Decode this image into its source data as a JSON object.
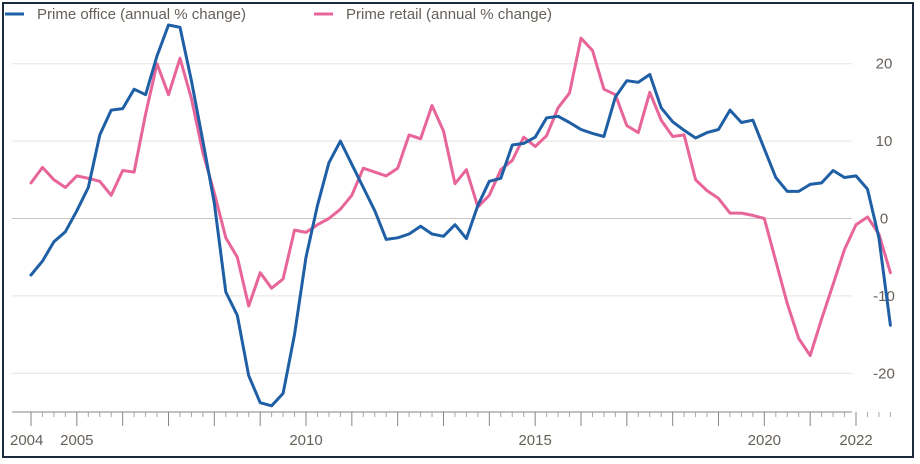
{
  "chart_data": {
    "type": "line",
    "title": "",
    "xlabel": "",
    "ylabel": "",
    "ylim": [
      -25,
      25
    ],
    "xlim": [
      2004,
      2022
    ],
    "y_ticks": [
      20,
      10,
      0,
      -10,
      -20
    ],
    "y_tick_labels": [
      "20",
      "10",
      "0",
      "-10",
      "-20"
    ],
    "x_ticks": [
      2004,
      2005,
      2010,
      2015,
      2020,
      2022
    ],
    "x_tick_labels": [
      "2004",
      "2005",
      "2010",
      "2015",
      "2020",
      "2022"
    ],
    "grid": "horizontal",
    "y_axis_side": "right",
    "legend_position": "top-left",
    "series": [
      {
        "name": "Prime office (annual % change)",
        "color": "#1f5fa5",
        "points": [
          [
            2004.0,
            -7.3
          ],
          [
            2004.25,
            -5.5
          ],
          [
            2004.5,
            -3.0
          ],
          [
            2004.75,
            -1.7
          ],
          [
            2005.0,
            1.0
          ],
          [
            2005.25,
            4.0
          ],
          [
            2005.5,
            10.8
          ],
          [
            2005.75,
            14.0
          ],
          [
            2006.0,
            14.2
          ],
          [
            2006.25,
            16.7
          ],
          [
            2006.5,
            16.0
          ],
          [
            2006.75,
            21.0
          ],
          [
            2007.0,
            25.0
          ],
          [
            2007.25,
            24.7
          ],
          [
            2007.5,
            17.8
          ],
          [
            2007.75,
            10.0
          ],
          [
            2008.0,
            2.0
          ],
          [
            2008.25,
            -9.5
          ],
          [
            2008.5,
            -12.5
          ],
          [
            2008.75,
            -20.3
          ],
          [
            2009.0,
            -23.8
          ],
          [
            2009.25,
            -24.2
          ],
          [
            2009.5,
            -22.6
          ],
          [
            2009.75,
            -15.0
          ],
          [
            2010.0,
            -5.0
          ],
          [
            2010.25,
            1.7
          ],
          [
            2010.5,
            7.2
          ],
          [
            2010.75,
            10.0
          ],
          [
            2011.0,
            7.0
          ],
          [
            2011.25,
            4.0
          ],
          [
            2011.5,
            1.0
          ],
          [
            2011.75,
            -2.7
          ],
          [
            2012.0,
            -2.5
          ],
          [
            2012.25,
            -2.0
          ],
          [
            2012.5,
            -1.0
          ],
          [
            2012.75,
            -2.0
          ],
          [
            2013.0,
            -2.3
          ],
          [
            2013.25,
            -0.8
          ],
          [
            2013.5,
            -2.6
          ],
          [
            2013.75,
            1.7
          ],
          [
            2014.0,
            4.8
          ],
          [
            2014.25,
            5.2
          ],
          [
            2014.5,
            9.5
          ],
          [
            2014.75,
            9.7
          ],
          [
            2015.0,
            10.5
          ],
          [
            2015.25,
            13.0
          ],
          [
            2015.5,
            13.2
          ],
          [
            2015.75,
            12.4
          ],
          [
            2016.0,
            11.5
          ],
          [
            2016.25,
            11.0
          ],
          [
            2016.5,
            10.6
          ],
          [
            2016.75,
            15.7
          ],
          [
            2017.0,
            17.8
          ],
          [
            2017.25,
            17.6
          ],
          [
            2017.5,
            18.6
          ],
          [
            2017.75,
            14.3
          ],
          [
            2018.0,
            12.5
          ],
          [
            2018.25,
            11.4
          ],
          [
            2018.5,
            10.4
          ],
          [
            2018.75,
            11.1
          ],
          [
            2019.0,
            11.5
          ],
          [
            2019.25,
            14.0
          ],
          [
            2019.5,
            12.4
          ],
          [
            2019.75,
            12.7
          ],
          [
            2020.0,
            9.0
          ],
          [
            2020.25,
            5.3
          ],
          [
            2020.5,
            3.5
          ],
          [
            2020.75,
            3.5
          ],
          [
            2021.0,
            4.4
          ],
          [
            2021.25,
            4.6
          ],
          [
            2021.5,
            6.2
          ],
          [
            2021.75,
            5.3
          ],
          [
            2022.0,
            5.5
          ],
          [
            2022.25,
            3.8
          ],
          [
            2022.5,
            -2.5
          ],
          [
            2022.75,
            -13.8
          ]
        ]
      },
      {
        "name": "Prime retail (annual % change)",
        "color": "#e8659a",
        "points": [
          [
            2004.0,
            4.6
          ],
          [
            2004.25,
            6.6
          ],
          [
            2004.5,
            5.0
          ],
          [
            2004.75,
            4.0
          ],
          [
            2005.0,
            5.5
          ],
          [
            2005.25,
            5.2
          ],
          [
            2005.5,
            4.8
          ],
          [
            2005.75,
            3.0
          ],
          [
            2006.0,
            6.2
          ],
          [
            2006.25,
            6.0
          ],
          [
            2006.5,
            13.5
          ],
          [
            2006.75,
            20.0
          ],
          [
            2007.0,
            16.0
          ],
          [
            2007.25,
            20.7
          ],
          [
            2007.5,
            15.5
          ],
          [
            2007.75,
            8.5
          ],
          [
            2008.0,
            3.3
          ],
          [
            2008.25,
            -2.5
          ],
          [
            2008.5,
            -5.0
          ],
          [
            2008.75,
            -11.3
          ],
          [
            2009.0,
            -7.0
          ],
          [
            2009.25,
            -9.0
          ],
          [
            2009.5,
            -7.8
          ],
          [
            2009.75,
            -1.5
          ],
          [
            2010.0,
            -1.8
          ],
          [
            2010.25,
            -0.8
          ],
          [
            2010.5,
            0.0
          ],
          [
            2010.75,
            1.2
          ],
          [
            2011.0,
            3.0
          ],
          [
            2011.25,
            6.5
          ],
          [
            2011.5,
            6.0
          ],
          [
            2011.75,
            5.5
          ],
          [
            2012.0,
            6.5
          ],
          [
            2012.25,
            10.8
          ],
          [
            2012.5,
            10.3
          ],
          [
            2012.75,
            14.6
          ],
          [
            2013.0,
            11.3
          ],
          [
            2013.25,
            4.5
          ],
          [
            2013.5,
            6.3
          ],
          [
            2013.75,
            1.5
          ],
          [
            2014.0,
            3.0
          ],
          [
            2014.25,
            6.3
          ],
          [
            2014.5,
            7.5
          ],
          [
            2014.75,
            10.5
          ],
          [
            2015.0,
            9.3
          ],
          [
            2015.25,
            10.7
          ],
          [
            2015.5,
            14.3
          ],
          [
            2015.75,
            16.2
          ],
          [
            2016.0,
            23.3
          ],
          [
            2016.25,
            21.7
          ],
          [
            2016.5,
            16.7
          ],
          [
            2016.75,
            16.0
          ],
          [
            2017.0,
            12.0
          ],
          [
            2017.25,
            11.1
          ],
          [
            2017.5,
            16.3
          ],
          [
            2017.75,
            12.7
          ],
          [
            2018.0,
            10.6
          ],
          [
            2018.25,
            10.8
          ],
          [
            2018.5,
            5.0
          ],
          [
            2018.75,
            3.6
          ],
          [
            2019.0,
            2.6
          ],
          [
            2019.25,
            0.7
          ],
          [
            2019.5,
            0.7
          ],
          [
            2019.75,
            0.4
          ],
          [
            2020.0,
            0.0
          ],
          [
            2020.25,
            -5.5
          ],
          [
            2020.5,
            -11.0
          ],
          [
            2020.75,
            -15.5
          ],
          [
            2021.0,
            -17.7
          ],
          [
            2021.25,
            -13.0
          ],
          [
            2021.5,
            -8.5
          ],
          [
            2021.75,
            -4.0
          ],
          [
            2022.0,
            -0.8
          ],
          [
            2022.25,
            0.2
          ],
          [
            2022.5,
            -2.0
          ],
          [
            2022.75,
            -7.0
          ]
        ]
      }
    ]
  }
}
